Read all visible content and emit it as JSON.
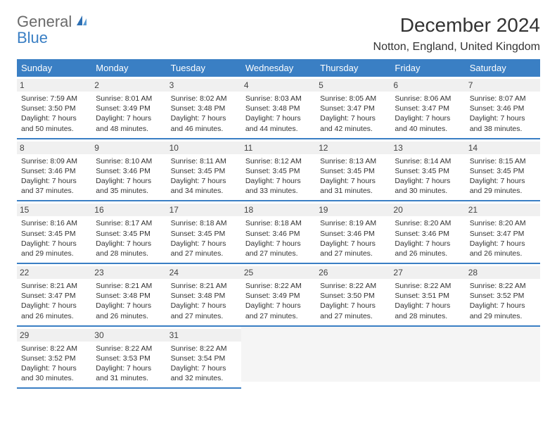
{
  "logo": {
    "general": "General",
    "blue": "Blue"
  },
  "title": "December 2024",
  "location": "Notton, England, United Kingdom",
  "colors": {
    "header_bg": "#3a7fc4",
    "header_text": "#ffffff",
    "body_bg": "#ffffff",
    "daynum_bg": "#f0f0f0",
    "border": "#3a7fc4",
    "text": "#333333"
  },
  "weekdays": [
    "Sunday",
    "Monday",
    "Tuesday",
    "Wednesday",
    "Thursday",
    "Friday",
    "Saturday"
  ],
  "weeks": [
    [
      {
        "n": "1",
        "sr": "Sunrise: 7:59 AM",
        "ss": "Sunset: 3:50 PM",
        "d1": "Daylight: 7 hours",
        "d2": "and 50 minutes."
      },
      {
        "n": "2",
        "sr": "Sunrise: 8:01 AM",
        "ss": "Sunset: 3:49 PM",
        "d1": "Daylight: 7 hours",
        "d2": "and 48 minutes."
      },
      {
        "n": "3",
        "sr": "Sunrise: 8:02 AM",
        "ss": "Sunset: 3:48 PM",
        "d1": "Daylight: 7 hours",
        "d2": "and 46 minutes."
      },
      {
        "n": "4",
        "sr": "Sunrise: 8:03 AM",
        "ss": "Sunset: 3:48 PM",
        "d1": "Daylight: 7 hours",
        "d2": "and 44 minutes."
      },
      {
        "n": "5",
        "sr": "Sunrise: 8:05 AM",
        "ss": "Sunset: 3:47 PM",
        "d1": "Daylight: 7 hours",
        "d2": "and 42 minutes."
      },
      {
        "n": "6",
        "sr": "Sunrise: 8:06 AM",
        "ss": "Sunset: 3:47 PM",
        "d1": "Daylight: 7 hours",
        "d2": "and 40 minutes."
      },
      {
        "n": "7",
        "sr": "Sunrise: 8:07 AM",
        "ss": "Sunset: 3:46 PM",
        "d1": "Daylight: 7 hours",
        "d2": "and 38 minutes."
      }
    ],
    [
      {
        "n": "8",
        "sr": "Sunrise: 8:09 AM",
        "ss": "Sunset: 3:46 PM",
        "d1": "Daylight: 7 hours",
        "d2": "and 37 minutes."
      },
      {
        "n": "9",
        "sr": "Sunrise: 8:10 AM",
        "ss": "Sunset: 3:46 PM",
        "d1": "Daylight: 7 hours",
        "d2": "and 35 minutes."
      },
      {
        "n": "10",
        "sr": "Sunrise: 8:11 AM",
        "ss": "Sunset: 3:45 PM",
        "d1": "Daylight: 7 hours",
        "d2": "and 34 minutes."
      },
      {
        "n": "11",
        "sr": "Sunrise: 8:12 AM",
        "ss": "Sunset: 3:45 PM",
        "d1": "Daylight: 7 hours",
        "d2": "and 33 minutes."
      },
      {
        "n": "12",
        "sr": "Sunrise: 8:13 AM",
        "ss": "Sunset: 3:45 PM",
        "d1": "Daylight: 7 hours",
        "d2": "and 31 minutes."
      },
      {
        "n": "13",
        "sr": "Sunrise: 8:14 AM",
        "ss": "Sunset: 3:45 PM",
        "d1": "Daylight: 7 hours",
        "d2": "and 30 minutes."
      },
      {
        "n": "14",
        "sr": "Sunrise: 8:15 AM",
        "ss": "Sunset: 3:45 PM",
        "d1": "Daylight: 7 hours",
        "d2": "and 29 minutes."
      }
    ],
    [
      {
        "n": "15",
        "sr": "Sunrise: 8:16 AM",
        "ss": "Sunset: 3:45 PM",
        "d1": "Daylight: 7 hours",
        "d2": "and 29 minutes."
      },
      {
        "n": "16",
        "sr": "Sunrise: 8:17 AM",
        "ss": "Sunset: 3:45 PM",
        "d1": "Daylight: 7 hours",
        "d2": "and 28 minutes."
      },
      {
        "n": "17",
        "sr": "Sunrise: 8:18 AM",
        "ss": "Sunset: 3:45 PM",
        "d1": "Daylight: 7 hours",
        "d2": "and 27 minutes."
      },
      {
        "n": "18",
        "sr": "Sunrise: 8:18 AM",
        "ss": "Sunset: 3:46 PM",
        "d1": "Daylight: 7 hours",
        "d2": "and 27 minutes."
      },
      {
        "n": "19",
        "sr": "Sunrise: 8:19 AM",
        "ss": "Sunset: 3:46 PM",
        "d1": "Daylight: 7 hours",
        "d2": "and 27 minutes."
      },
      {
        "n": "20",
        "sr": "Sunrise: 8:20 AM",
        "ss": "Sunset: 3:46 PM",
        "d1": "Daylight: 7 hours",
        "d2": "and 26 minutes."
      },
      {
        "n": "21",
        "sr": "Sunrise: 8:20 AM",
        "ss": "Sunset: 3:47 PM",
        "d1": "Daylight: 7 hours",
        "d2": "and 26 minutes."
      }
    ],
    [
      {
        "n": "22",
        "sr": "Sunrise: 8:21 AM",
        "ss": "Sunset: 3:47 PM",
        "d1": "Daylight: 7 hours",
        "d2": "and 26 minutes."
      },
      {
        "n": "23",
        "sr": "Sunrise: 8:21 AM",
        "ss": "Sunset: 3:48 PM",
        "d1": "Daylight: 7 hours",
        "d2": "and 26 minutes."
      },
      {
        "n": "24",
        "sr": "Sunrise: 8:21 AM",
        "ss": "Sunset: 3:48 PM",
        "d1": "Daylight: 7 hours",
        "d2": "and 27 minutes."
      },
      {
        "n": "25",
        "sr": "Sunrise: 8:22 AM",
        "ss": "Sunset: 3:49 PM",
        "d1": "Daylight: 7 hours",
        "d2": "and 27 minutes."
      },
      {
        "n": "26",
        "sr": "Sunrise: 8:22 AM",
        "ss": "Sunset: 3:50 PM",
        "d1": "Daylight: 7 hours",
        "d2": "and 27 minutes."
      },
      {
        "n": "27",
        "sr": "Sunrise: 8:22 AM",
        "ss": "Sunset: 3:51 PM",
        "d1": "Daylight: 7 hours",
        "d2": "and 28 minutes."
      },
      {
        "n": "28",
        "sr": "Sunrise: 8:22 AM",
        "ss": "Sunset: 3:52 PM",
        "d1": "Daylight: 7 hours",
        "d2": "and 29 minutes."
      }
    ],
    [
      {
        "n": "29",
        "sr": "Sunrise: 8:22 AM",
        "ss": "Sunset: 3:52 PM",
        "d1": "Daylight: 7 hours",
        "d2": "and 30 minutes."
      },
      {
        "n": "30",
        "sr": "Sunrise: 8:22 AM",
        "ss": "Sunset: 3:53 PM",
        "d1": "Daylight: 7 hours",
        "d2": "and 31 minutes."
      },
      {
        "n": "31",
        "sr": "Sunrise: 8:22 AM",
        "ss": "Sunset: 3:54 PM",
        "d1": "Daylight: 7 hours",
        "d2": "and 32 minutes."
      },
      null,
      null,
      null,
      null
    ]
  ]
}
